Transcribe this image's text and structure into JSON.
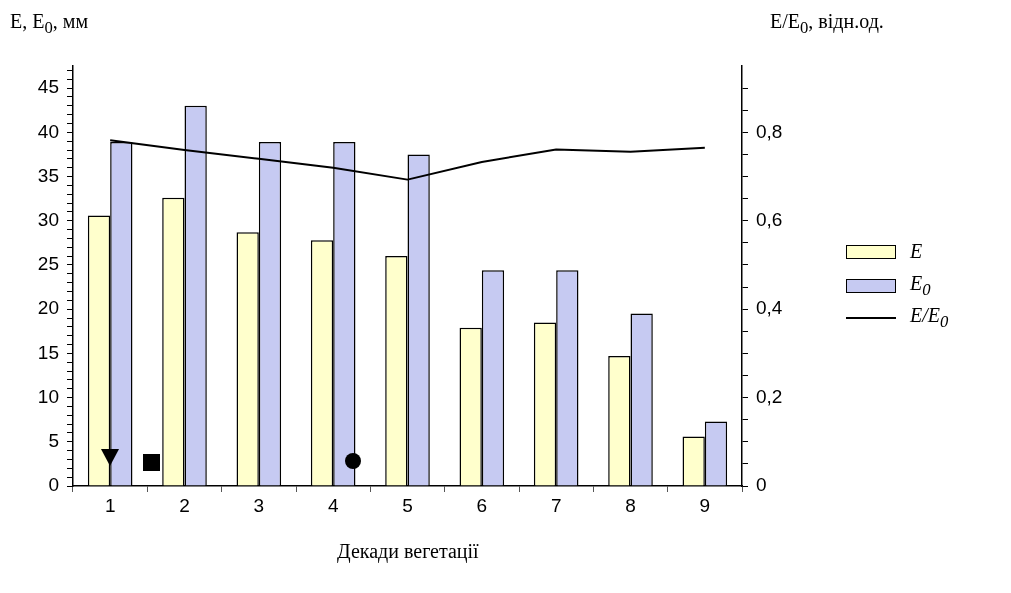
{
  "chart_data": {
    "type": "bar",
    "ylabel": "E, E$_{0}$, мм",
    "y2label": "E/E$_{0}$, відн.од.",
    "xlabel": "Декади вегетації",
    "categories": [
      "1",
      "2",
      "3",
      "4",
      "5",
      "6",
      "7",
      "8",
      "9"
    ],
    "series": [
      {
        "name": "E",
        "color": "#ffffcc",
        "values": [
          30.6,
          32.6,
          28.7,
          27.8,
          26.0,
          17.9,
          18.5,
          14.7,
          5.6
        ]
      },
      {
        "name": "E$_{0}$",
        "color": "#c6caf2",
        "values": [
          38.9,
          43.0,
          38.9,
          38.9,
          37.5,
          24.4,
          24.4,
          19.5,
          7.3
        ]
      },
      {
        "name": "E/E$_{0}$",
        "type": "line",
        "axis": "y2",
        "color": "#000000",
        "values": [
          0.782,
          0.76,
          0.74,
          0.72,
          0.693,
          0.733,
          0.761,
          0.756,
          0.765
        ]
      }
    ],
    "ylim": [
      0,
      47.5
    ],
    "yticks": [
      0,
      {
        "value": 1,
        "label": null
      },
      {
        "value": 2,
        "label": null
      },
      {
        "value": 3,
        "label": null
      },
      {
        "value": 4,
        "label": null
      },
      5,
      {
        "value": 6,
        "label": null
      },
      {
        "value": 7,
        "label": null
      },
      {
        "value": 8,
        "label": null
      },
      {
        "value": 9,
        "label": null
      },
      10,
      {
        "value": 11,
        "label": null
      },
      {
        "value": 12,
        "label": null
      },
      {
        "value": 13,
        "label": null
      },
      {
        "value": 14,
        "label": null
      },
      15,
      {
        "value": 16,
        "label": null
      },
      {
        "value": 17,
        "label": null
      },
      {
        "value": 18,
        "label": null
      },
      {
        "value": 19,
        "label": null
      },
      20,
      {
        "value": 21,
        "label": null
      },
      {
        "value": 22,
        "label": null
      },
      {
        "value": 23,
        "label": null
      },
      {
        "value": 24,
        "label": null
      },
      25,
      {
        "value": 26,
        "label": null
      },
      {
        "value": 27,
        "label": null
      },
      {
        "value": 28,
        "label": null
      },
      {
        "value": 29,
        "label": null
      },
      30,
      {
        "value": 31,
        "label": null
      },
      {
        "value": 32,
        "label": null
      },
      {
        "value": 33,
        "label": null
      },
      {
        "value": 34,
        "label": null
      },
      35,
      {
        "value": 36,
        "label": null
      },
      {
        "value": 37,
        "label": null
      },
      {
        "value": 38,
        "label": null
      },
      {
        "value": 39,
        "label": null
      },
      40,
      {
        "value": 41,
        "label": null
      },
      {
        "value": 42,
        "label": null
      },
      {
        "value": 43,
        "label": null
      },
      {
        "value": 44,
        "label": null
      },
      45,
      {
        "value": 46,
        "label": null
      },
      {
        "value": 47,
        "label": null
      }
    ],
    "y2lim": [
      0,
      0.95
    ],
    "y2ticks": [
      {
        "value": 0,
        "label": "0"
      },
      {
        "value": 0.05,
        "label": null
      },
      {
        "value": 0.1,
        "label": null
      },
      {
        "value": 0.15,
        "label": null
      },
      {
        "value": 0.2,
        "label": "0,2"
      },
      {
        "value": 0.25,
        "label": null
      },
      {
        "value": 0.3,
        "label": null
      },
      {
        "value": 0.35,
        "label": null
      },
      {
        "value": 0.4,
        "label": "0,4"
      },
      {
        "value": 0.45,
        "label": null
      },
      {
        "value": 0.5,
        "label": null
      },
      {
        "value": 0.55,
        "label": null
      },
      {
        "value": 0.6,
        "label": "0,6"
      },
      {
        "value": 0.65,
        "label": null
      },
      {
        "value": 0.7,
        "label": null
      },
      {
        "value": 0.75,
        "label": null
      },
      {
        "value": 0.8,
        "label": "0,8"
      },
      {
        "value": 0.85,
        "label": null
      },
      {
        "value": 0.9,
        "label": null
      }
    ],
    "grid": false,
    "legend": "right",
    "marker": "none"
  }
}
